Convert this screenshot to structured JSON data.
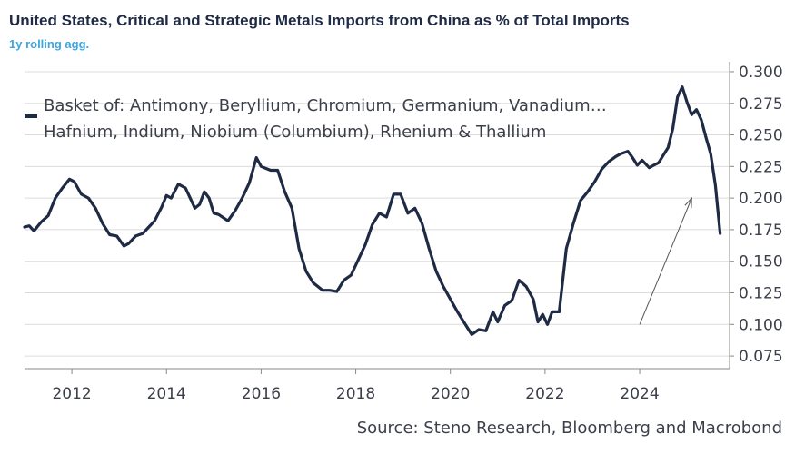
{
  "header": {
    "title": "United States, Critical and Strategic Metals Imports from China as % of Total Imports",
    "subtitle": "1y rolling agg."
  },
  "source": "Source: Steno Research, Bloomberg and Macrobond",
  "colors": {
    "line": "#1f2a44",
    "grid": "#dcdcdc",
    "title": "#1f2a44",
    "subtitle": "#3da5e0",
    "text": "#3b3f4a"
  },
  "chart_data": {
    "type": "line",
    "title": "United States, Critical and Strategic Metals Imports from China as % of Total Imports",
    "subtitle": "1y rolling agg.",
    "xlabel": "",
    "ylabel": "",
    "xlim": [
      2011.0,
      2025.9
    ],
    "ylim": [
      0.065,
      0.305
    ],
    "y_axis_position": "right",
    "x_ticks": [
      "2012",
      "2014",
      "2016",
      "2018",
      "2020",
      "2022",
      "2024"
    ],
    "y_ticks": [
      "0.300",
      "0.275",
      "0.250",
      "0.225",
      "0.200",
      "0.175",
      "0.150",
      "0.125",
      "0.100",
      "0.075"
    ],
    "grid": "horizontal",
    "legend": {
      "position": "top-left",
      "entries": [
        "Basket of: Antimony, Beryllium, Chromium, Germanium, Vanadium…",
        "Hafnium, Indium, Niobium (Columbium), Rhenium & Thallium"
      ]
    },
    "annotation": {
      "type": "arrow",
      "from": [
        2024.0,
        0.1
      ],
      "to": [
        2025.1,
        0.2
      ]
    },
    "series": [
      {
        "name": "Basket of: Antimony, Beryllium, Chromium, Germanium, Vanadium… Hafnium, Indium, Niobium (Columbium), Rhenium & Thallium",
        "x": [
          2011.0,
          2011.1,
          2011.2,
          2011.35,
          2011.5,
          2011.65,
          2011.8,
          2011.95,
          2012.05,
          2012.2,
          2012.35,
          2012.5,
          2012.65,
          2012.8,
          2012.95,
          2013.1,
          2013.2,
          2013.35,
          2013.5,
          2013.6,
          2013.75,
          2013.9,
          2014.0,
          2014.1,
          2014.25,
          2014.4,
          2014.5,
          2014.6,
          2014.7,
          2014.8,
          2014.9,
          2015.0,
          2015.1,
          2015.3,
          2015.45,
          2015.6,
          2015.75,
          2015.9,
          2016.0,
          2016.2,
          2016.35,
          2016.5,
          2016.65,
          2016.8,
          2016.95,
          2017.1,
          2017.3,
          2017.45,
          2017.6,
          2017.75,
          2017.9,
          2018.05,
          2018.2,
          2018.35,
          2018.5,
          2018.65,
          2018.8,
          2018.95,
          2019.1,
          2019.25,
          2019.4,
          2019.55,
          2019.7,
          2019.85,
          2020.0,
          2020.15,
          2020.3,
          2020.45,
          2020.6,
          2020.75,
          2020.9,
          2021.0,
          2021.15,
          2021.3,
          2021.45,
          2021.6,
          2021.75,
          2021.85,
          2021.95,
          2022.05,
          2022.15,
          2022.3,
          2022.45,
          2022.6,
          2022.75,
          2022.9,
          2023.05,
          2023.2,
          2023.35,
          2023.5,
          2023.6,
          2023.75,
          2023.85,
          2023.95,
          2024.05,
          2024.2,
          2024.3,
          2024.4,
          2024.5,
          2024.6,
          2024.7,
          2024.8,
          2024.9,
          2025.0,
          2025.1,
          2025.2,
          2025.3,
          2025.4,
          2025.5,
          2025.6,
          2025.7
        ],
        "values": [
          0.177,
          0.178,
          0.174,
          0.181,
          0.186,
          0.2,
          0.208,
          0.215,
          0.213,
          0.203,
          0.2,
          0.192,
          0.18,
          0.171,
          0.17,
          0.162,
          0.164,
          0.17,
          0.172,
          0.176,
          0.182,
          0.193,
          0.202,
          0.2,
          0.211,
          0.208,
          0.2,
          0.192,
          0.195,
          0.205,
          0.2,
          0.188,
          0.187,
          0.182,
          0.19,
          0.2,
          0.212,
          0.232,
          0.225,
          0.222,
          0.222,
          0.205,
          0.192,
          0.16,
          0.142,
          0.133,
          0.127,
          0.127,
          0.126,
          0.135,
          0.139,
          0.151,
          0.163,
          0.179,
          0.188,
          0.185,
          0.203,
          0.203,
          0.188,
          0.192,
          0.18,
          0.16,
          0.142,
          0.13,
          0.12,
          0.11,
          0.101,
          0.092,
          0.096,
          0.095,
          0.11,
          0.102,
          0.115,
          0.119,
          0.135,
          0.13,
          0.12,
          0.102,
          0.108,
          0.1,
          0.11,
          0.11,
          0.16,
          0.18,
          0.198,
          0.205,
          0.213,
          0.223,
          0.229,
          0.233,
          0.235,
          0.237,
          0.232,
          0.226,
          0.23,
          0.224,
          0.226,
          0.228,
          0.234,
          0.24,
          0.255,
          0.28,
          0.288,
          0.276,
          0.266,
          0.27,
          0.262,
          0.248,
          0.235,
          0.21,
          0.172
        ]
      }
    ]
  }
}
